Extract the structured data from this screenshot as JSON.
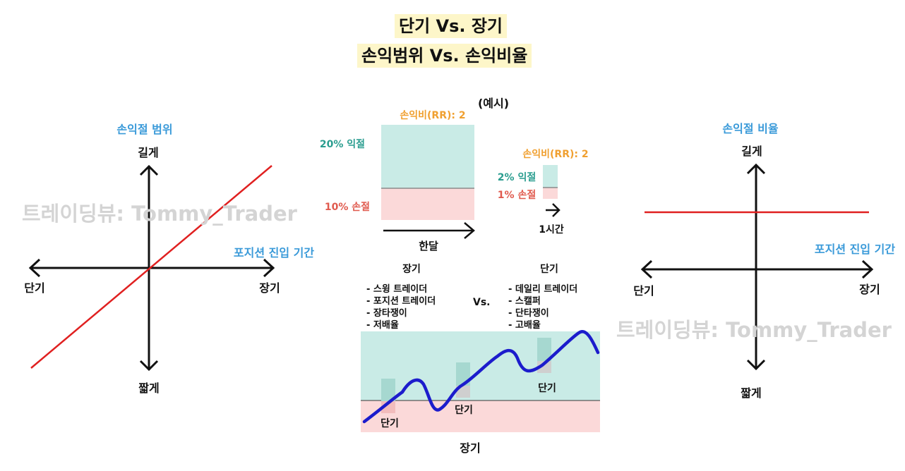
{
  "titles": {
    "line1": "단기 Vs. 장기",
    "line2": "손익범위 Vs. 손익비율"
  },
  "watermark": "트레이딩뷰: Tommy_Trader",
  "left_chart": {
    "title": "손익절 범위",
    "up": "길게",
    "down": "짧게",
    "left": "단기",
    "right": "장기",
    "x_axis_label": "포지션 진입 기간"
  },
  "right_chart": {
    "title": "손익절 비율",
    "up": "길게",
    "down": "짧게",
    "left": "단기",
    "right": "장기",
    "x_axis_label": "포지션 진입 기간"
  },
  "example": {
    "label": "(예시)",
    "big": {
      "rr": "손익비(RR): 2",
      "profit": "20% 익절",
      "loss": "10% 손절",
      "period": "한달"
    },
    "small": {
      "rr": "손익비(RR): 2",
      "profit": "2% 익절",
      "loss": "1% 손절",
      "period": "1시간"
    }
  },
  "comparison": {
    "long_header": "장기",
    "short_header": "단기",
    "vs": "Vs.",
    "long_items": [
      "- 스윙 트레이더",
      "- 포지션 트레이더",
      "- 장타쟁이",
      "- 저배율"
    ],
    "short_items": [
      "- 데일리 트레이더",
      "- 스캘퍼",
      "- 단타쟁이",
      "- 고배율"
    ]
  },
  "bottom_chart": {
    "short_labels": [
      "단기",
      "단기",
      "단기"
    ],
    "long_label": "장기"
  },
  "colors": {
    "profit_fill": "#c9ebe6",
    "loss_fill": "#fbd9d9",
    "blue_label": "#3a9ad9",
    "orange_label": "#f0a030",
    "teal_label": "#2a9d8f",
    "red_label": "#e05a4e",
    "red_line": "#e02020",
    "price_line": "#1c1ccc",
    "title_bg": "#fdf6c9"
  }
}
